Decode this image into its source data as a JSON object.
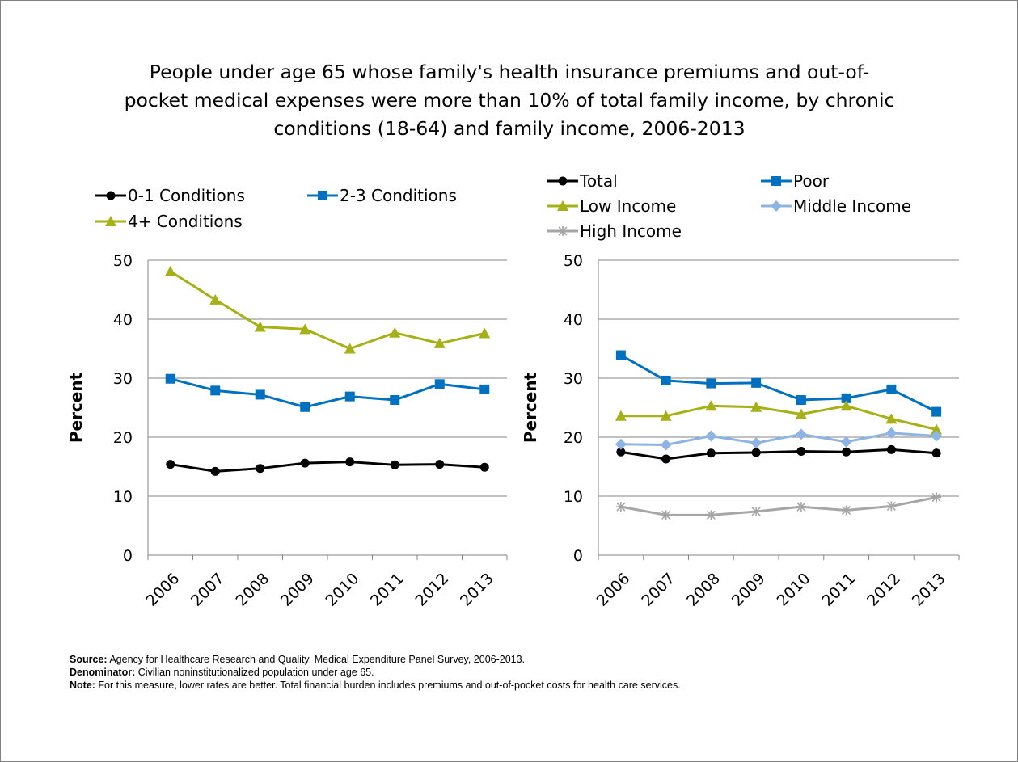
{
  "title": "People under age 65 whose family's health insurance premiums and out-of-pocket medical expenses were more than 10% of total family income, by chronic conditions (18-64) and family income, 2006-2013",
  "title_lines": [
    "People under age 65 whose family's health insurance premiums and out-of-",
    "pocket medical expenses were more than 10% of total family income, by chronic",
    "conditions (18-64) and family income, 2006-2013"
  ],
  "chart_data": [
    {
      "type": "line",
      "categories": [
        "2006",
        "2007",
        "2008",
        "2009",
        "2010",
        "2011",
        "2012",
        "2013"
      ],
      "ylabel": "Percent",
      "ylim": [
        0,
        50
      ],
      "yticks": [
        "0",
        "10",
        "20",
        "30",
        "40",
        "50"
      ],
      "grid": true,
      "legend": "top",
      "series": [
        {
          "name": "0-1 Conditions",
          "color": "#000000",
          "marker": "circle",
          "values": [
            15.4,
            14.2,
            14.7,
            15.6,
            15.8,
            15.3,
            15.4,
            14.9
          ]
        },
        {
          "name": "2-3 Conditions",
          "color": "#0070C0",
          "marker": "square",
          "values": [
            29.9,
            27.9,
            27.2,
            25.1,
            26.9,
            26.3,
            29.0,
            28.1
          ]
        },
        {
          "name": "4+ Conditions",
          "color": "#A5B116",
          "marker": "triangle",
          "values": [
            48.1,
            43.3,
            38.7,
            38.3,
            35.0,
            37.7,
            35.9,
            37.6
          ]
        }
      ]
    },
    {
      "type": "line",
      "categories": [
        "2006",
        "2007",
        "2008",
        "2009",
        "2010",
        "2011",
        "2012",
        "2013"
      ],
      "ylabel": "Percent",
      "ylim": [
        0,
        50
      ],
      "yticks": [
        "0",
        "10",
        "20",
        "30",
        "40",
        "50"
      ],
      "grid": true,
      "legend": "top",
      "series": [
        {
          "name": "Total",
          "color": "#000000",
          "marker": "circle",
          "values": [
            17.5,
            16.3,
            17.3,
            17.4,
            17.6,
            17.5,
            17.9,
            17.3
          ]
        },
        {
          "name": "Poor",
          "color": "#0070C0",
          "marker": "square",
          "values": [
            33.9,
            29.6,
            29.1,
            29.2,
            26.3,
            26.6,
            28.1,
            24.3
          ]
        },
        {
          "name": "Low Income",
          "color": "#A5B116",
          "marker": "triangle",
          "values": [
            23.6,
            23.6,
            25.3,
            25.1,
            23.9,
            25.3,
            23.1,
            21.3
          ]
        },
        {
          "name": "Middle Income",
          "color": "#8EB4E3",
          "marker": "diamond",
          "values": [
            18.8,
            18.7,
            20.2,
            19.0,
            20.5,
            19.2,
            20.7,
            20.2
          ]
        },
        {
          "name": "High Income",
          "color": "#A6A6A6",
          "marker": "star",
          "values": [
            8.2,
            6.8,
            6.8,
            7.4,
            8.2,
            7.6,
            8.3,
            9.8
          ]
        }
      ]
    }
  ],
  "notes": {
    "source_label": "Source:",
    "source_text": " Agency for Healthcare Research and Quality, Medical Expenditure Panel Survey, 2006-2013.",
    "denominator_label": "Denominator:",
    "denominator_text": " Civilian noninstitutionalized population under age 65.",
    "note_label": "Note:",
    "note_text": " For this measure, lower rates are better. Total financial burden includes premiums and out-of-pocket costs for health care services."
  }
}
